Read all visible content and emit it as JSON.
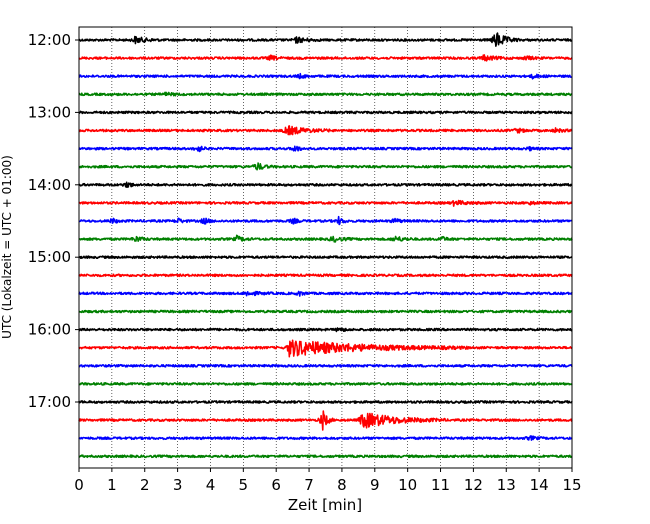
{
  "chart_data": {
    "type": "line",
    "title": "",
    "xlabel": "Zeit  [min]",
    "ylabel": "UTC (Lokalzeit = UTC + 01:00)",
    "xlim": [
      0,
      15
    ],
    "x_ticks": [
      0,
      1,
      2,
      3,
      4,
      5,
      6,
      7,
      8,
      9,
      10,
      11,
      12,
      13,
      14,
      15
    ],
    "x_tick_labels": [
      "0",
      "1",
      "2",
      "3",
      "4",
      "5",
      "6",
      "7",
      "8",
      "9",
      "10",
      "11",
      "12",
      "13",
      "14",
      "15"
    ],
    "y_tick_labels": [
      "12:00",
      "13:00",
      "14:00",
      "15:00",
      "16:00",
      "17:00"
    ],
    "traces_per_hour": 4,
    "trace_minutes": 15,
    "grid": "vertical dotted",
    "color_cycle": [
      "#000000",
      "#ff0000",
      "#0000ff",
      "#008000"
    ],
    "traces": [
      {
        "start": "12:00",
        "events": [
          {
            "t": 1.7,
            "amp": 0.35,
            "dur": 0.5
          },
          {
            "t": 6.6,
            "amp": 0.3,
            "dur": 0.5
          },
          {
            "t": 12.65,
            "amp": 1.0,
            "dur": 0.45
          }
        ]
      },
      {
        "start": "12:15",
        "events": [
          {
            "t": 5.8,
            "amp": 0.25,
            "dur": 0.3
          },
          {
            "t": 12.3,
            "amp": 0.3,
            "dur": 0.5
          },
          {
            "t": 13.6,
            "amp": 0.2,
            "dur": 0.3
          }
        ]
      },
      {
        "start": "12:30",
        "events": [
          {
            "t": 6.7,
            "amp": 0.2,
            "dur": 0.3
          },
          {
            "t": 13.8,
            "amp": 0.2,
            "dur": 0.3
          }
        ]
      },
      {
        "start": "12:45",
        "events": [
          {
            "t": 2.6,
            "amp": 0.15,
            "dur": 0.4
          }
        ]
      },
      {
        "start": "13:00",
        "events": []
      },
      {
        "start": "13:15",
        "events": [
          {
            "t": 6.3,
            "amp": 0.5,
            "dur": 0.9
          },
          {
            "t": 13.3,
            "amp": 0.25,
            "dur": 0.3
          },
          {
            "t": 14.5,
            "amp": 0.2,
            "dur": 0.3
          }
        ]
      },
      {
        "start": "13:30",
        "events": [
          {
            "t": 3.6,
            "amp": 0.4,
            "dur": 0.2
          },
          {
            "t": 6.55,
            "amp": 0.4,
            "dur": 0.2
          },
          {
            "t": 13.7,
            "amp": 0.15,
            "dur": 0.2
          }
        ]
      },
      {
        "start": "13:45",
        "events": [
          {
            "t": 5.4,
            "amp": 0.45,
            "dur": 0.3
          }
        ]
      },
      {
        "start": "14:00",
        "events": [
          {
            "t": 1.45,
            "amp": 0.35,
            "dur": 0.2
          }
        ]
      },
      {
        "start": "14:15",
        "events": [
          {
            "t": 11.4,
            "amp": 0.25,
            "dur": 0.6
          },
          {
            "t": 13.7,
            "amp": 0.15,
            "dur": 0.3
          }
        ]
      },
      {
        "start": "14:30",
        "events": [
          {
            "t": 1.0,
            "amp": 0.3,
            "dur": 0.2
          },
          {
            "t": 3.0,
            "amp": 0.3,
            "dur": 0.2
          },
          {
            "t": 3.8,
            "amp": 0.35,
            "dur": 0.2
          },
          {
            "t": 6.5,
            "amp": 0.3,
            "dur": 0.2
          },
          {
            "t": 7.9,
            "amp": 0.4,
            "dur": 0.2
          },
          {
            "t": 9.6,
            "amp": 0.3,
            "dur": 0.2
          }
        ]
      },
      {
        "start": "14:45",
        "events": [
          {
            "t": 1.7,
            "amp": 0.3,
            "dur": 0.3
          },
          {
            "t": 4.8,
            "amp": 0.3,
            "dur": 0.3
          },
          {
            "t": 7.7,
            "amp": 0.3,
            "dur": 0.4
          },
          {
            "t": 9.6,
            "amp": 0.3,
            "dur": 0.4
          },
          {
            "t": 11.0,
            "amp": 0.25,
            "dur": 0.3
          }
        ]
      },
      {
        "start": "15:00",
        "events": []
      },
      {
        "start": "15:15",
        "events": []
      },
      {
        "start": "15:30",
        "events": [
          {
            "t": 5.1,
            "amp": 0.25,
            "dur": 0.5
          },
          {
            "t": 6.7,
            "amp": 0.25,
            "dur": 0.2
          }
        ]
      },
      {
        "start": "15:45",
        "events": []
      },
      {
        "start": "16:00",
        "events": [
          {
            "t": 7.9,
            "amp": 0.3,
            "dur": 0.2
          }
        ]
      },
      {
        "start": "16:15",
        "events": [
          {
            "t": 6.4,
            "amp": 0.9,
            "dur": 3.4
          }
        ]
      },
      {
        "start": "16:30",
        "events": []
      },
      {
        "start": "16:45",
        "events": []
      },
      {
        "start": "17:00",
        "events": []
      },
      {
        "start": "17:15",
        "events": [
          {
            "t": 7.4,
            "amp": 1.2,
            "dur": 0.2
          },
          {
            "t": 8.6,
            "amp": 0.9,
            "dur": 1.6
          }
        ]
      },
      {
        "start": "17:30",
        "events": [
          {
            "t": 13.7,
            "amp": 0.2,
            "dur": 0.3
          }
        ]
      },
      {
        "start": "17:45",
        "events": []
      }
    ]
  }
}
